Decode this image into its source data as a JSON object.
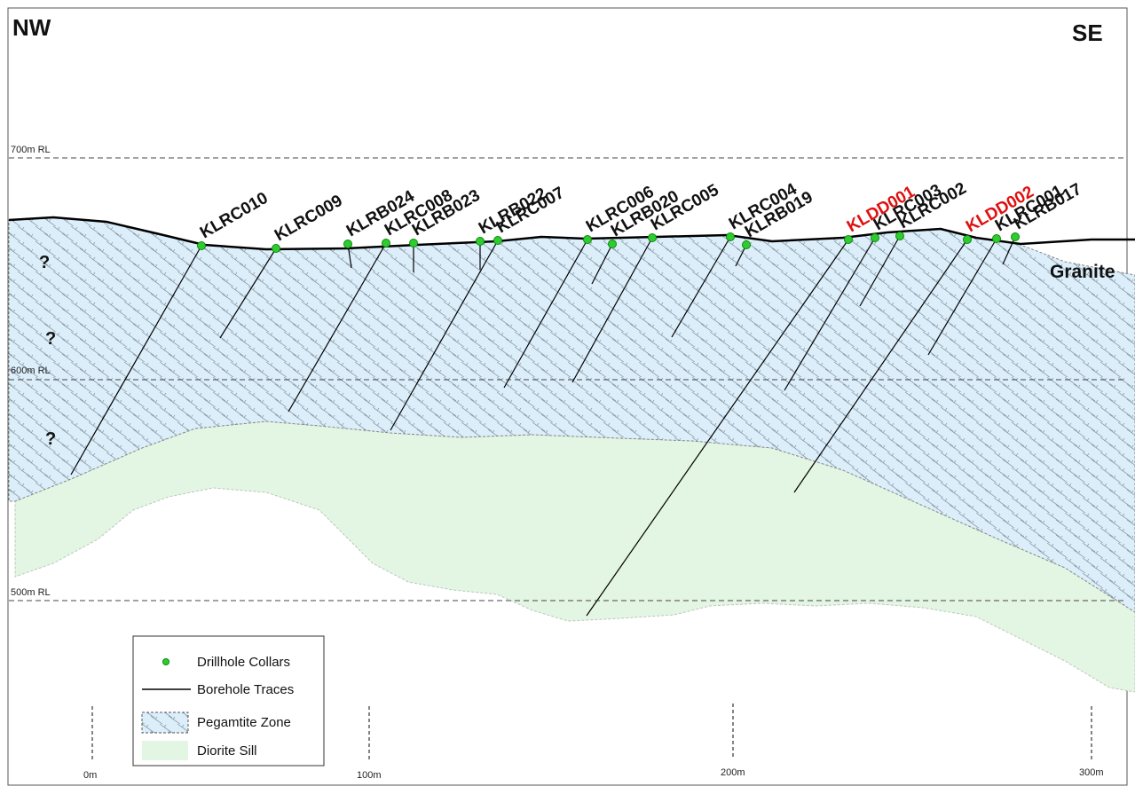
{
  "directions": {
    "left": "NW",
    "right": "SE"
  },
  "rl_levels": [
    "700m RL",
    "600m RL",
    "500m RL"
  ],
  "question_marks": [
    "?",
    "?",
    "?"
  ],
  "rock_label": "Granite",
  "drillholes": [
    {
      "id": "KLRC010",
      "highlight": false
    },
    {
      "id": "KLRC009",
      "highlight": false
    },
    {
      "id": "KLRB024",
      "highlight": false
    },
    {
      "id": "KLRC008",
      "highlight": false
    },
    {
      "id": "KLRB023",
      "highlight": false
    },
    {
      "id": "KLRB022",
      "highlight": false
    },
    {
      "id": "KLRC007",
      "highlight": false
    },
    {
      "id": "KLRC006",
      "highlight": false
    },
    {
      "id": "KLRB020",
      "highlight": false
    },
    {
      "id": "KLRC005",
      "highlight": false
    },
    {
      "id": "KLRC004",
      "highlight": false
    },
    {
      "id": "KLRB019",
      "highlight": false
    },
    {
      "id": "KLDD001",
      "highlight": true
    },
    {
      "id": "KLRC003",
      "highlight": false
    },
    {
      "id": "KLRC002",
      "highlight": false
    },
    {
      "id": "KLDD002",
      "highlight": true
    },
    {
      "id": "KLRC001",
      "highlight": false
    },
    {
      "id": "KLRB017",
      "highlight": false
    }
  ],
  "legend": {
    "collars": "Drillhole Collars",
    "traces": "Borehole Traces",
    "pegmatite": "Pegamtite Zone",
    "diorite": "Diorite Sill"
  },
  "scale": [
    "0m",
    "100m",
    "200m",
    "300m"
  ],
  "colors": {
    "collar": "#2ecc2e",
    "pegmatite_fill": "#dceefa",
    "diorite_fill": "#e3f5e3",
    "highlight_label": "#e01010"
  }
}
